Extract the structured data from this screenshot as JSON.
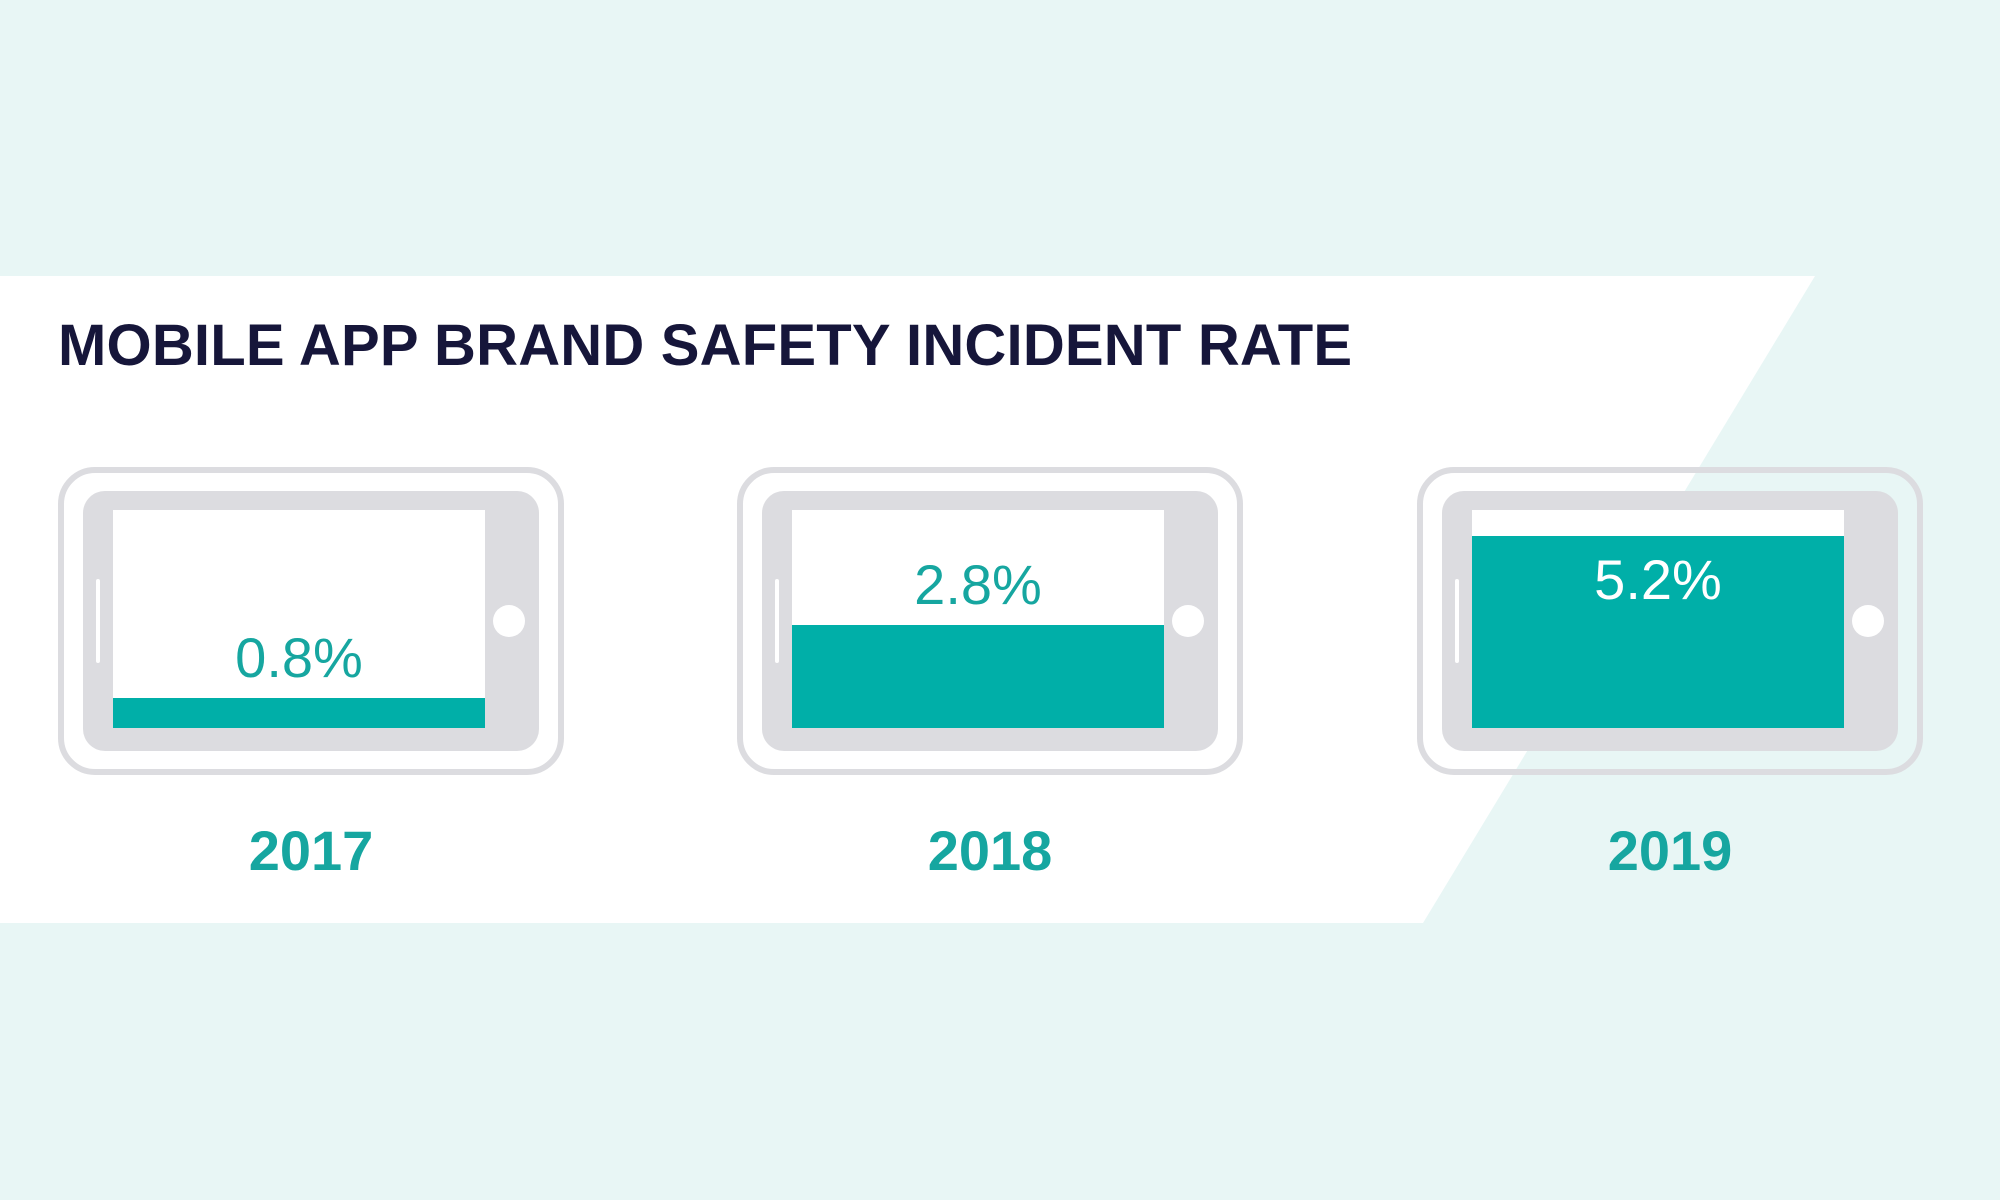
{
  "colors": {
    "background": "#e8f6f5",
    "panel": "#ffffff",
    "accent": "#00afa8",
    "title": "#16163a",
    "phone_frame": "#dcdce0"
  },
  "chart_data": {
    "type": "bar",
    "title": "MOBILE APP BRAND SAFETY INCIDENT RATE",
    "categories": [
      "2017",
      "2018",
      "2019"
    ],
    "values": [
      0.8,
      2.8,
      5.2
    ],
    "value_labels": [
      "0.8%",
      "2.8%",
      "5.2%"
    ],
    "unit": "%",
    "ylim": [
      0,
      5.9
    ],
    "xlabel": "",
    "ylabel": "",
    "grid": false,
    "bar_style": "phone-screen-fill"
  }
}
